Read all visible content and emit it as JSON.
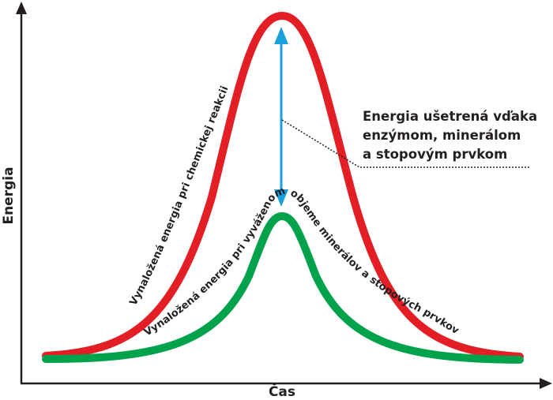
{
  "axes": {
    "y_label": "Energia",
    "x_label": "Čas"
  },
  "curves": {
    "red_label": "Vynaložená energia pri chemickej reakcii",
    "green_label": "Vynaložená energia pri vyváženom objeme minerálov a stopových prvkov"
  },
  "annotation": {
    "line1": "Energia ušetrená vďaka",
    "line2": "enzýmom, minerálom",
    "line3": "a stopovým prvkom"
  },
  "colors": {
    "red_curve": "#e31e24",
    "green_curve": "#00a24b",
    "arrow": "#1aa0dc",
    "axis": "#231f20"
  }
}
